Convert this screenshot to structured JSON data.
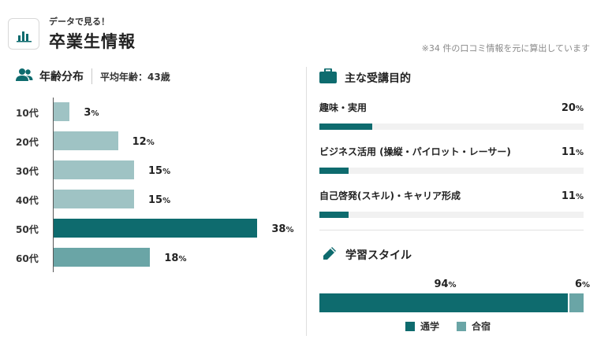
{
  "header": {
    "eyebrow": "データで見る！",
    "title": "卒業生情報",
    "note": "※34 件の口コミ情報を元に算出しています",
    "logo_icon": "bar-chart-icon"
  },
  "colors": {
    "dark": "#0e6b6e",
    "mid": "#6aa5a6",
    "light": "#9fc3c4",
    "track": "#f1f1f1"
  },
  "age": {
    "label": "年齢分布",
    "icon": "users-icon",
    "avg_label": "平均年齢：",
    "avg_value": "43歳",
    "unit": "%",
    "chart_data": {
      "type": "bar",
      "orientation": "horizontal",
      "categories": [
        "10代",
        "20代",
        "30代",
        "40代",
        "50代",
        "60代"
      ],
      "values": [
        3,
        12,
        15,
        15,
        38,
        18
      ],
      "color_level": [
        "light",
        "light",
        "light",
        "light",
        "dark",
        "mid"
      ]
    }
  },
  "purpose": {
    "label": "主な受講目的",
    "icon": "briefcase-icon",
    "unit": "%",
    "items": [
      {
        "label": "趣味・実用",
        "value": 20
      },
      {
        "label": "ビジネス活用 (操縦・パイロット・レーサー)",
        "value": 11
      },
      {
        "label": "自己啓発(スキル)・キャリア形成",
        "value": 11
      }
    ]
  },
  "style": {
    "label": "学習スタイル",
    "icon": "pencil-icon",
    "unit": "%",
    "segments": [
      {
        "name": "通学",
        "value": 94,
        "color": "dark"
      },
      {
        "name": "合宿",
        "value": 6,
        "color": "mid"
      }
    ]
  }
}
